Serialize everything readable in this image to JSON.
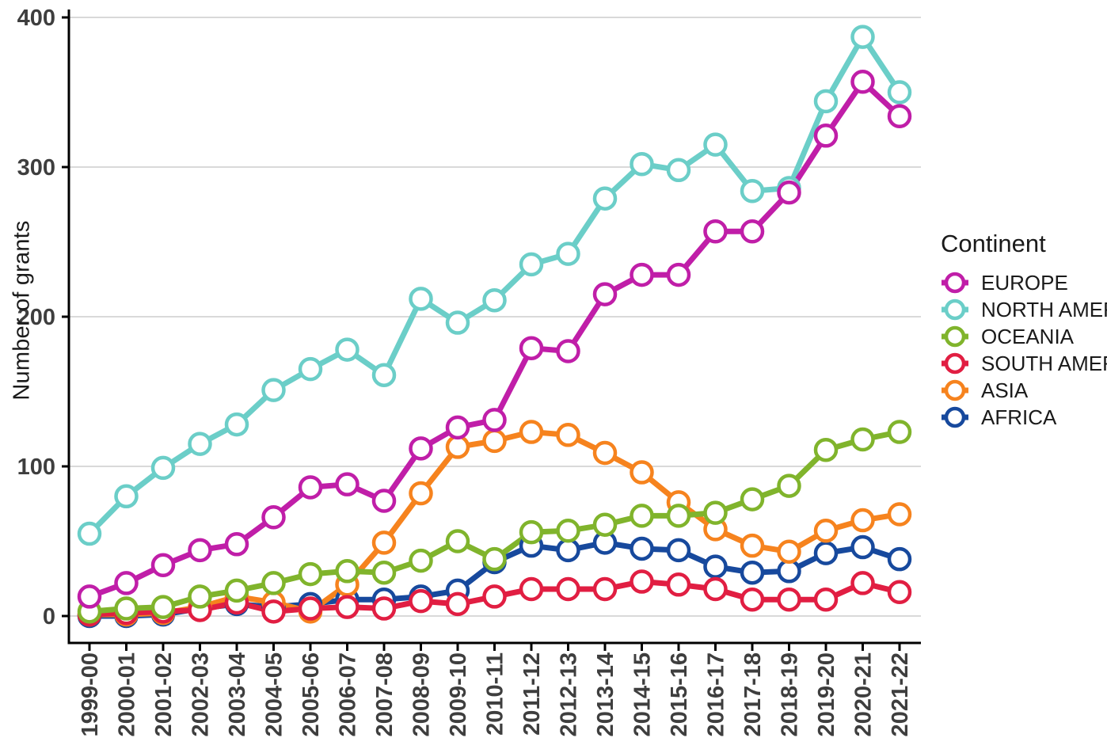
{
  "chart_data": {
    "type": "line",
    "title": "",
    "xlabel": "",
    "ylabel": "Number of grants",
    "legend_title": "Continent",
    "legend_position": "right",
    "grid": "horizontal-only",
    "ylim": [
      0,
      400
    ],
    "y_ticks": [
      0,
      100,
      200,
      300,
      400
    ],
    "categories": [
      "1999-00",
      "2000-01",
      "2001-02",
      "2002-03",
      "2003-04",
      "2004-05",
      "2005-06",
      "2006-07",
      "2007-08",
      "2008-09",
      "2009-10",
      "2010-11",
      "2011-12",
      "2012-13",
      "2013-14",
      "2014-15",
      "2015-16",
      "2016-17",
      "2017-18",
      "2018-19",
      "2019-20",
      "2020-21",
      "2021-22"
    ],
    "series": [
      {
        "name": "EUROPE",
        "color": "#C01EA8",
        "values": [
          13,
          22,
          34,
          44,
          48,
          66,
          86,
          88,
          77,
          112,
          126,
          131,
          179,
          177,
          215,
          228,
          228,
          257,
          257,
          283,
          321,
          357,
          334
        ]
      },
      {
        "name": "NORTH AMERICA",
        "color": "#6BCEC8",
        "values": [
          55,
          80,
          99,
          115,
          128,
          151,
          165,
          178,
          161,
          212,
          196,
          211,
          235,
          242,
          279,
          302,
          298,
          315,
          284,
          286,
          344,
          387,
          350
        ]
      },
      {
        "name": "OCEANIA",
        "color": "#80B42C",
        "values": [
          3,
          5,
          6,
          13,
          17,
          22,
          28,
          30,
          29,
          37,
          50,
          38,
          56,
          57,
          61,
          67,
          67,
          69,
          78,
          87,
          111,
          118,
          123
        ]
      },
      {
        "name": "SOUTH AMERICA",
        "color": "#E11E42",
        "values": [
          1,
          2,
          3,
          4,
          9,
          3,
          5,
          6,
          5,
          10,
          8,
          13,
          18,
          18,
          18,
          23,
          21,
          18,
          11,
          11,
          11,
          22,
          16
        ]
      },
      {
        "name": "ASIA",
        "color": "#F6831E",
        "values": [
          1,
          1,
          2,
          6,
          13,
          9,
          3,
          21,
          49,
          82,
          113,
          117,
          123,
          121,
          109,
          96,
          76,
          58,
          47,
          43,
          57,
          64,
          68
        ]
      },
      {
        "name": "AFRICA",
        "color": "#17499D",
        "values": [
          0,
          0,
          1,
          5,
          8,
          6,
          8,
          11,
          11,
          13,
          17,
          36,
          47,
          44,
          49,
          45,
          44,
          33,
          29,
          30,
          42,
          46,
          38
        ]
      }
    ],
    "draw_order": [
      "AFRICA",
      "ASIA",
      "SOUTH AMERICA",
      "OCEANIA",
      "NORTH AMERICA",
      "EUROPE"
    ],
    "style": {
      "grid_color": "#d9d9d9",
      "axis_color": "#000000",
      "tick_label_color": "#3e3e3e",
      "point_fill": "#ffffff"
    }
  }
}
